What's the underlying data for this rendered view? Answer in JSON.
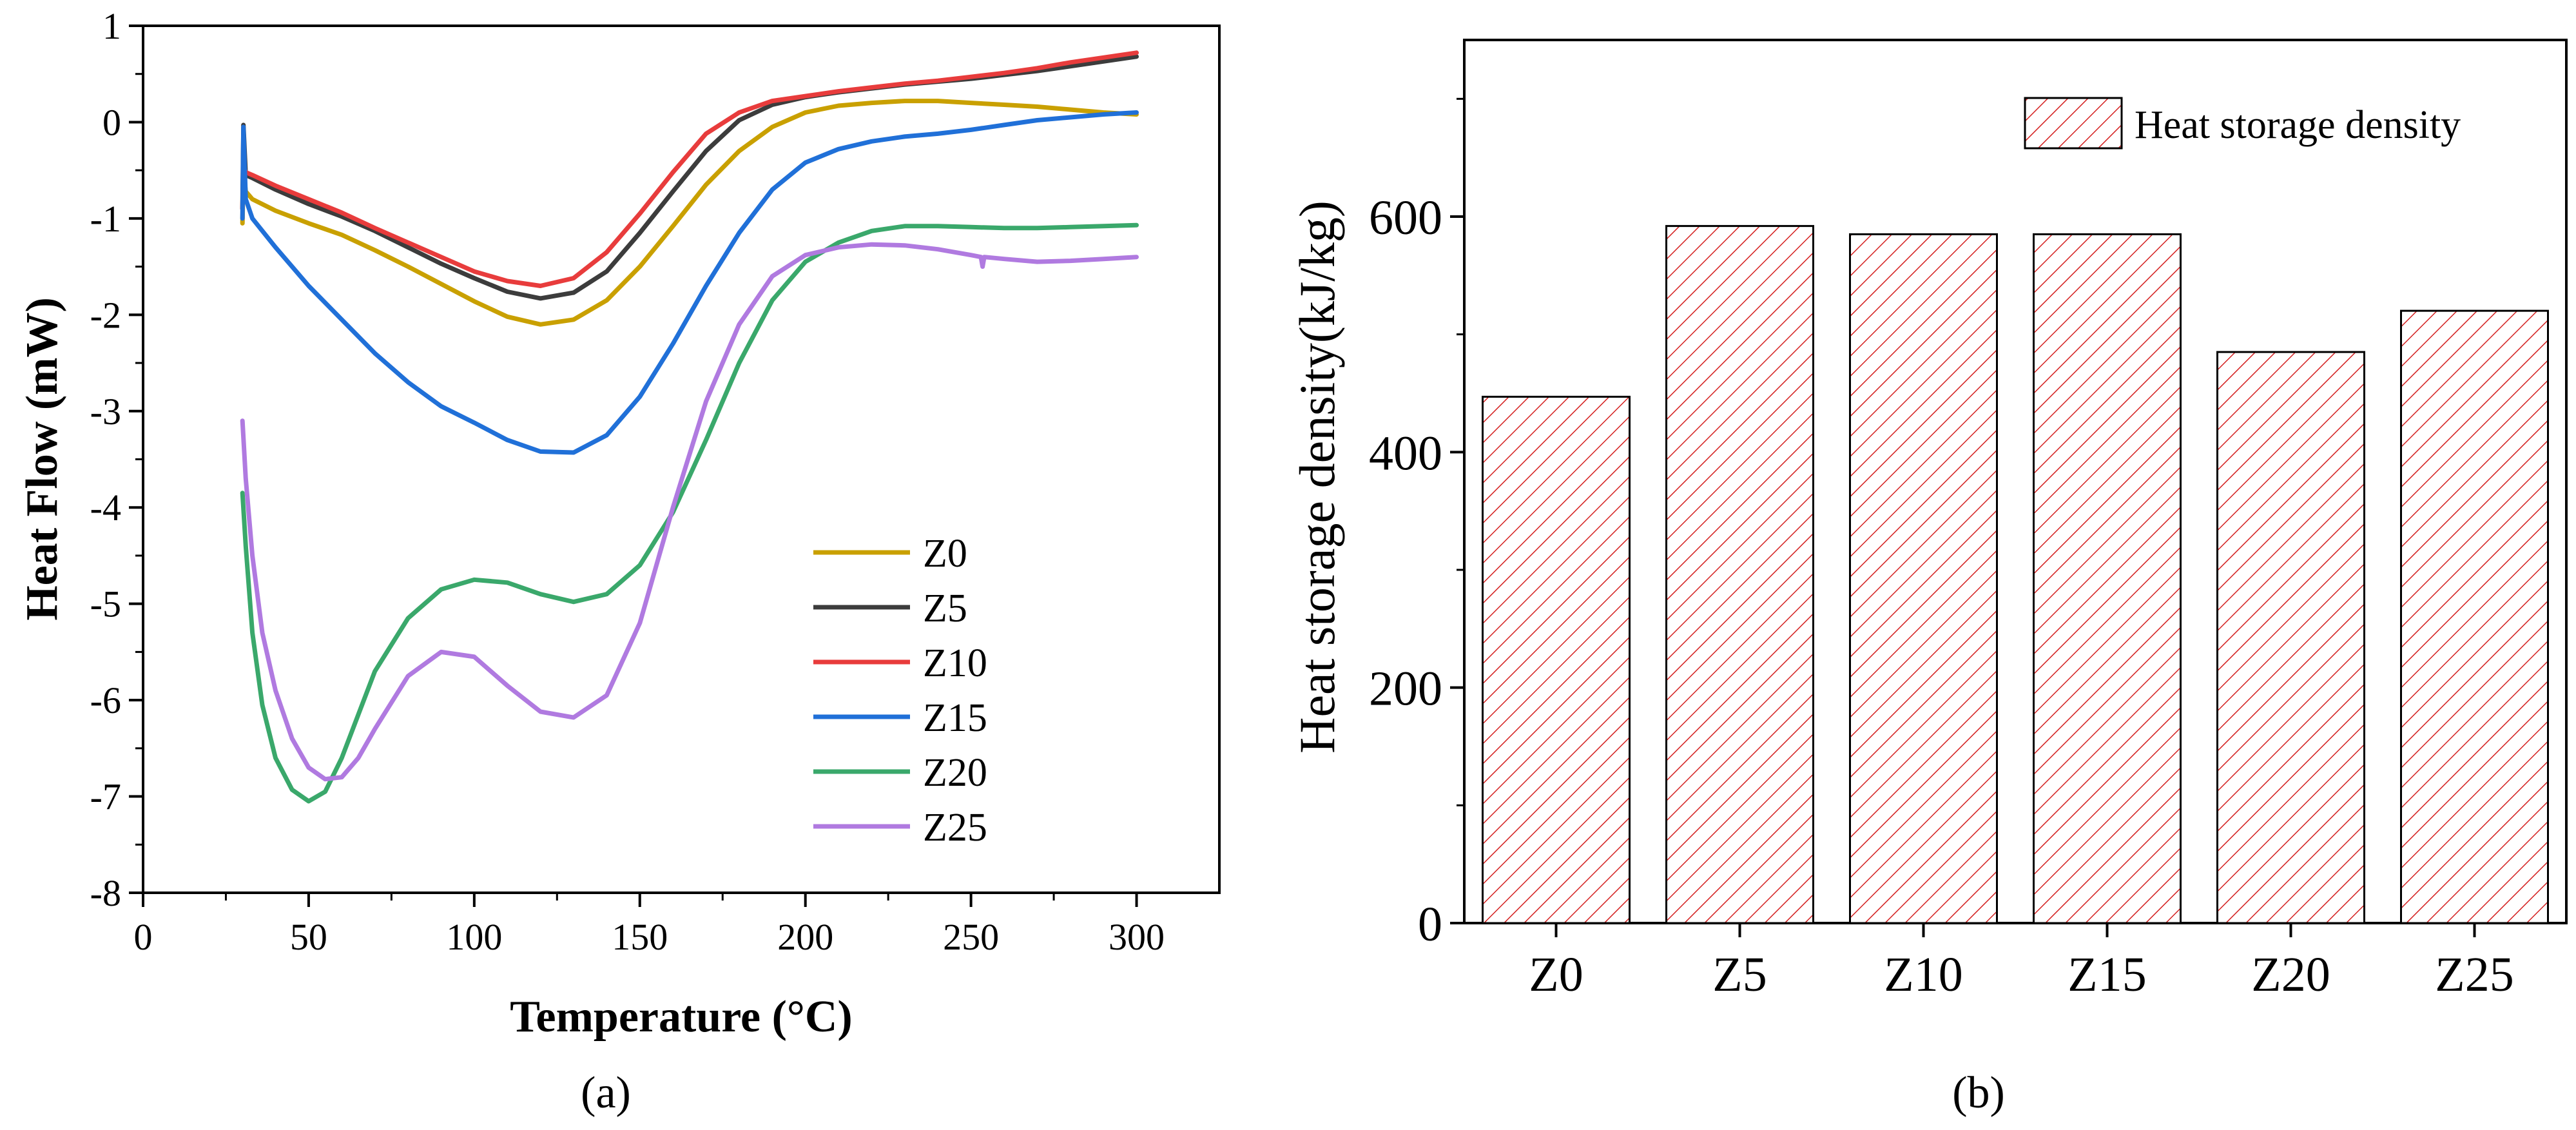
{
  "chart_data": [
    {
      "type": "line",
      "panel_label": "(a)",
      "title": "",
      "xlabel": "Temperature (°C)",
      "ylabel": "Heat Flow (mW)",
      "xlim": [
        0,
        325
      ],
      "ylim": [
        -8,
        1
      ],
      "xticks": [
        0,
        50,
        100,
        150,
        200,
        250,
        300
      ],
      "yticks": [
        -8,
        -7,
        -6,
        -5,
        -4,
        -3,
        -2,
        -1,
        0,
        1
      ],
      "grid": false,
      "legend_position": "lower-right",
      "series": [
        {
          "name": "Z0",
          "color": "#c9a000",
          "x": [
            30,
            30.3,
            31,
            33,
            40,
            50,
            60,
            70,
            80,
            90,
            100,
            110,
            120,
            130,
            140,
            150,
            160,
            170,
            180,
            190,
            200,
            210,
            220,
            230,
            240,
            250,
            260,
            270,
            280,
            290,
            300
          ],
          "y": [
            -1.05,
            -0.5,
            -0.72,
            -0.8,
            -0.92,
            -1.05,
            -1.17,
            -1.33,
            -1.5,
            -1.68,
            -1.86,
            -2.02,
            -2.1,
            -2.05,
            -1.85,
            -1.5,
            -1.08,
            -0.65,
            -0.3,
            -0.05,
            0.1,
            0.17,
            0.2,
            0.22,
            0.22,
            0.2,
            0.18,
            0.16,
            0.13,
            0.1,
            0.08
          ]
        },
        {
          "name": "Z5",
          "color": "#3c3c3c",
          "x": [
            30,
            30.3,
            31,
            33,
            40,
            50,
            60,
            70,
            80,
            90,
            100,
            110,
            120,
            130,
            140,
            150,
            160,
            170,
            180,
            190,
            200,
            210,
            220,
            230,
            240,
            250,
            260,
            270,
            280,
            290,
            300
          ],
          "y": [
            -0.9,
            -0.03,
            -0.55,
            -0.58,
            -0.7,
            -0.85,
            -0.98,
            -1.13,
            -1.3,
            -1.47,
            -1.62,
            -1.76,
            -1.83,
            -1.77,
            -1.55,
            -1.15,
            -0.72,
            -0.3,
            0.02,
            0.18,
            0.26,
            0.31,
            0.35,
            0.39,
            0.42,
            0.45,
            0.49,
            0.53,
            0.58,
            0.63,
            0.68
          ]
        },
        {
          "name": "Z10",
          "color": "#e83c3c",
          "x": [
            30,
            30.3,
            31,
            33,
            40,
            50,
            60,
            70,
            80,
            90,
            100,
            110,
            120,
            130,
            140,
            150,
            160,
            170,
            180,
            190,
            200,
            210,
            220,
            230,
            240,
            250,
            260,
            270,
            280,
            290,
            300
          ],
          "y": [
            -0.9,
            -0.45,
            -0.52,
            -0.55,
            -0.66,
            -0.8,
            -0.94,
            -1.1,
            -1.25,
            -1.4,
            -1.55,
            -1.65,
            -1.7,
            -1.62,
            -1.35,
            -0.95,
            -0.52,
            -0.12,
            0.1,
            0.22,
            0.27,
            0.32,
            0.36,
            0.4,
            0.43,
            0.47,
            0.51,
            0.56,
            0.62,
            0.67,
            0.72
          ]
        },
        {
          "name": "Z15",
          "color": "#2070d8",
          "x": [
            30,
            30.3,
            31,
            33,
            40,
            50,
            60,
            70,
            80,
            90,
            100,
            110,
            120,
            130,
            140,
            150,
            160,
            170,
            180,
            190,
            200,
            210,
            220,
            230,
            240,
            250,
            260,
            270,
            280,
            290,
            300
          ],
          "y": [
            -1.0,
            -0.05,
            -0.8,
            -1.0,
            -1.3,
            -1.7,
            -2.05,
            -2.4,
            -2.7,
            -2.95,
            -3.12,
            -3.3,
            -3.42,
            -3.43,
            -3.25,
            -2.85,
            -2.3,
            -1.7,
            -1.15,
            -0.7,
            -0.42,
            -0.28,
            -0.2,
            -0.15,
            -0.12,
            -0.08,
            -0.03,
            0.02,
            0.05,
            0.08,
            0.1
          ]
        },
        {
          "name": "Z20",
          "color": "#3aa86b",
          "x": [
            30,
            31,
            33,
            36,
            40,
            45,
            50,
            55,
            60,
            65,
            70,
            80,
            90,
            100,
            110,
            120,
            130,
            140,
            150,
            160,
            170,
            180,
            190,
            200,
            210,
            220,
            230,
            240,
            250,
            260,
            270,
            280,
            290,
            300
          ],
          "y": [
            -3.85,
            -4.4,
            -5.3,
            -6.05,
            -6.6,
            -6.93,
            -7.05,
            -6.95,
            -6.6,
            -6.15,
            -5.7,
            -5.15,
            -4.85,
            -4.75,
            -4.78,
            -4.9,
            -4.98,
            -4.9,
            -4.6,
            -4.05,
            -3.3,
            -2.5,
            -1.85,
            -1.45,
            -1.25,
            -1.13,
            -1.08,
            -1.08,
            -1.09,
            -1.1,
            -1.1,
            -1.09,
            -1.08,
            -1.07
          ]
        },
        {
          "name": "Z25",
          "color": "#b07ae0",
          "x": [
            30,
            31,
            33,
            36,
            40,
            45,
            50,
            55,
            60,
            65,
            70,
            80,
            90,
            100,
            110,
            120,
            130,
            140,
            150,
            160,
            170,
            180,
            190,
            200,
            210,
            220,
            230,
            240,
            250,
            253,
            253.5,
            254,
            260,
            270,
            280,
            290,
            300
          ],
          "y": [
            -3.1,
            -3.7,
            -4.5,
            -5.3,
            -5.9,
            -6.4,
            -6.7,
            -6.82,
            -6.8,
            -6.6,
            -6.3,
            -5.75,
            -5.5,
            -5.55,
            -5.85,
            -6.12,
            -6.18,
            -5.95,
            -5.2,
            -4.0,
            -2.9,
            -2.1,
            -1.6,
            -1.38,
            -1.3,
            -1.27,
            -1.28,
            -1.32,
            -1.38,
            -1.4,
            -1.5,
            -1.4,
            -1.42,
            -1.45,
            -1.44,
            -1.42,
            -1.4
          ]
        }
      ]
    },
    {
      "type": "bar",
      "panel_label": "(b)",
      "title": "",
      "xlabel": "",
      "ylabel": "Heat storage density(kJ/kg)",
      "ylim": [
        0,
        750
      ],
      "yticks": [
        0,
        200,
        400,
        600
      ],
      "grid": false,
      "legend_position": "top-right",
      "categories": [
        "Z0",
        "Z5",
        "Z10",
        "Z15",
        "Z20",
        "Z25"
      ],
      "series": [
        {
          "name": "Heat storage density",
          "color": "#d42020",
          "values": [
            447,
            592,
            585,
            585,
            485,
            520
          ]
        }
      ]
    }
  ]
}
